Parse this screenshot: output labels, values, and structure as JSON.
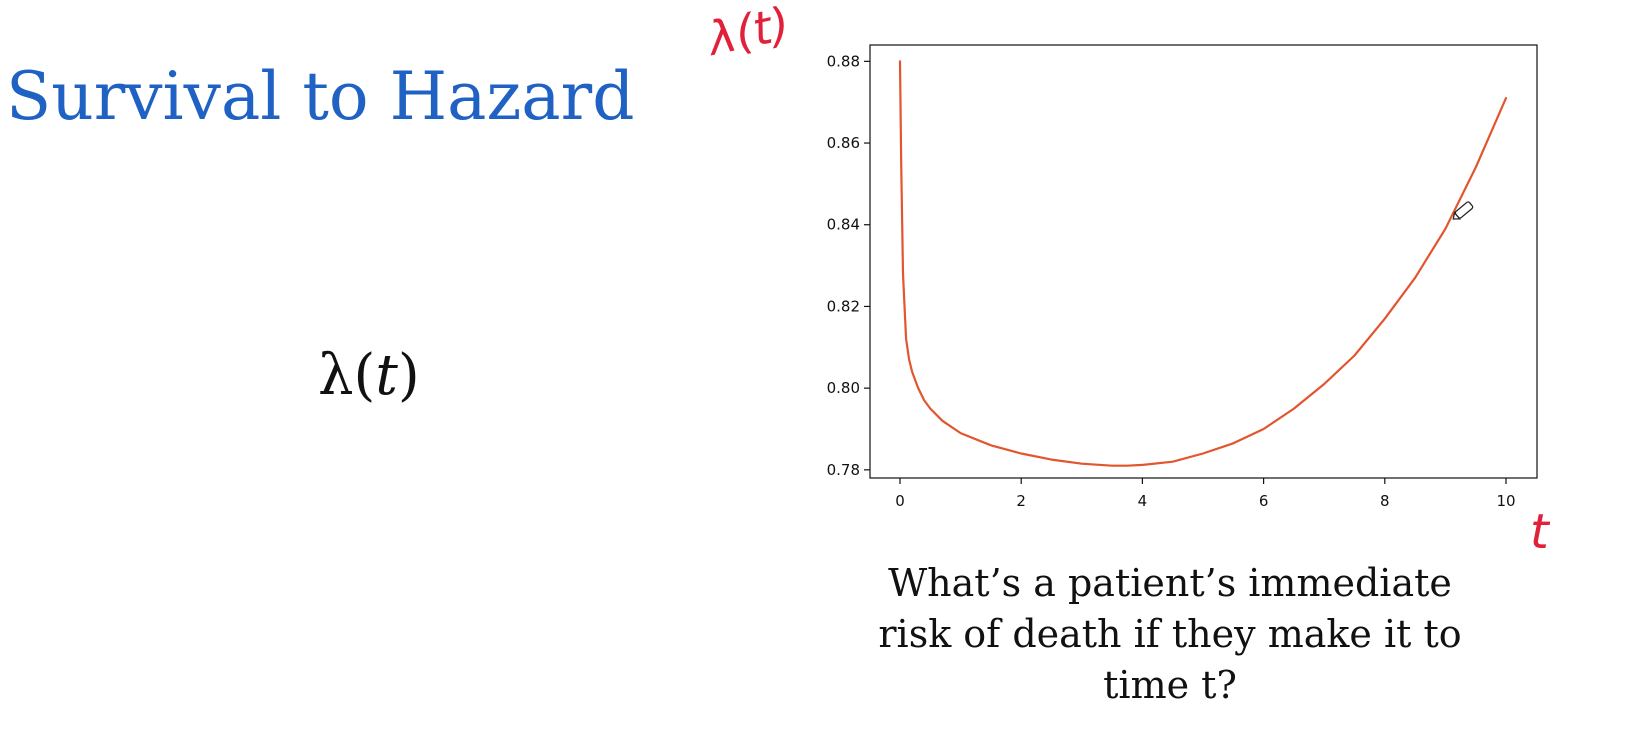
{
  "slide": {
    "title": "Survival to Hazard",
    "formula_symbol": "λ",
    "formula_open": "(",
    "formula_var": "t",
    "formula_close": ")",
    "caption_lines": [
      "What’s a patient’s immediate",
      "risk of death if they make it to",
      "time t?"
    ],
    "handwritten_y_label": "λ(t)",
    "handwritten_x_label": "t"
  },
  "colors": {
    "title": "#1f62c4",
    "curve": "#e2552e",
    "annotation": "#e1203a",
    "text": "#111111"
  },
  "icons": {
    "cursor": "pencil-cursor-icon"
  },
  "chart_data": {
    "type": "line",
    "title": "",
    "xlabel": "",
    "ylabel": "",
    "xlim": [
      0,
      10
    ],
    "ylim": [
      0.778,
      0.884
    ],
    "x_ticks": [
      0,
      2,
      4,
      6,
      8,
      10
    ],
    "x_tick_labels": [
      "0",
      "2",
      "4",
      "6",
      "8",
      "10"
    ],
    "y_ticks": [
      0.78,
      0.8,
      0.82,
      0.84,
      0.86,
      0.88
    ],
    "y_tick_labels": [
      "0.78",
      "0.80",
      "0.82",
      "0.84",
      "0.86",
      "0.88"
    ],
    "grid": false,
    "legend": "none",
    "series": [
      {
        "x": [
          0,
          0.02,
          0.05,
          0.1,
          0.15,
          0.2,
          0.3,
          0.4,
          0.5,
          0.7,
          1.0,
          1.5,
          2.0,
          2.5,
          3.0,
          3.5,
          3.75,
          4.0,
          4.5,
          5.0,
          5.5,
          6.0,
          6.5,
          7.0,
          7.5,
          8.0,
          8.5,
          9.0,
          9.5,
          10.0
        ],
        "y": [
          0.88,
          0.855,
          0.828,
          0.812,
          0.807,
          0.804,
          0.8,
          0.797,
          0.795,
          0.792,
          0.789,
          0.786,
          0.784,
          0.7825,
          0.7815,
          0.781,
          0.781,
          0.7812,
          0.782,
          0.784,
          0.7865,
          0.79,
          0.795,
          0.801,
          0.808,
          0.817,
          0.827,
          0.839,
          0.854,
          0.871
        ]
      }
    ]
  }
}
